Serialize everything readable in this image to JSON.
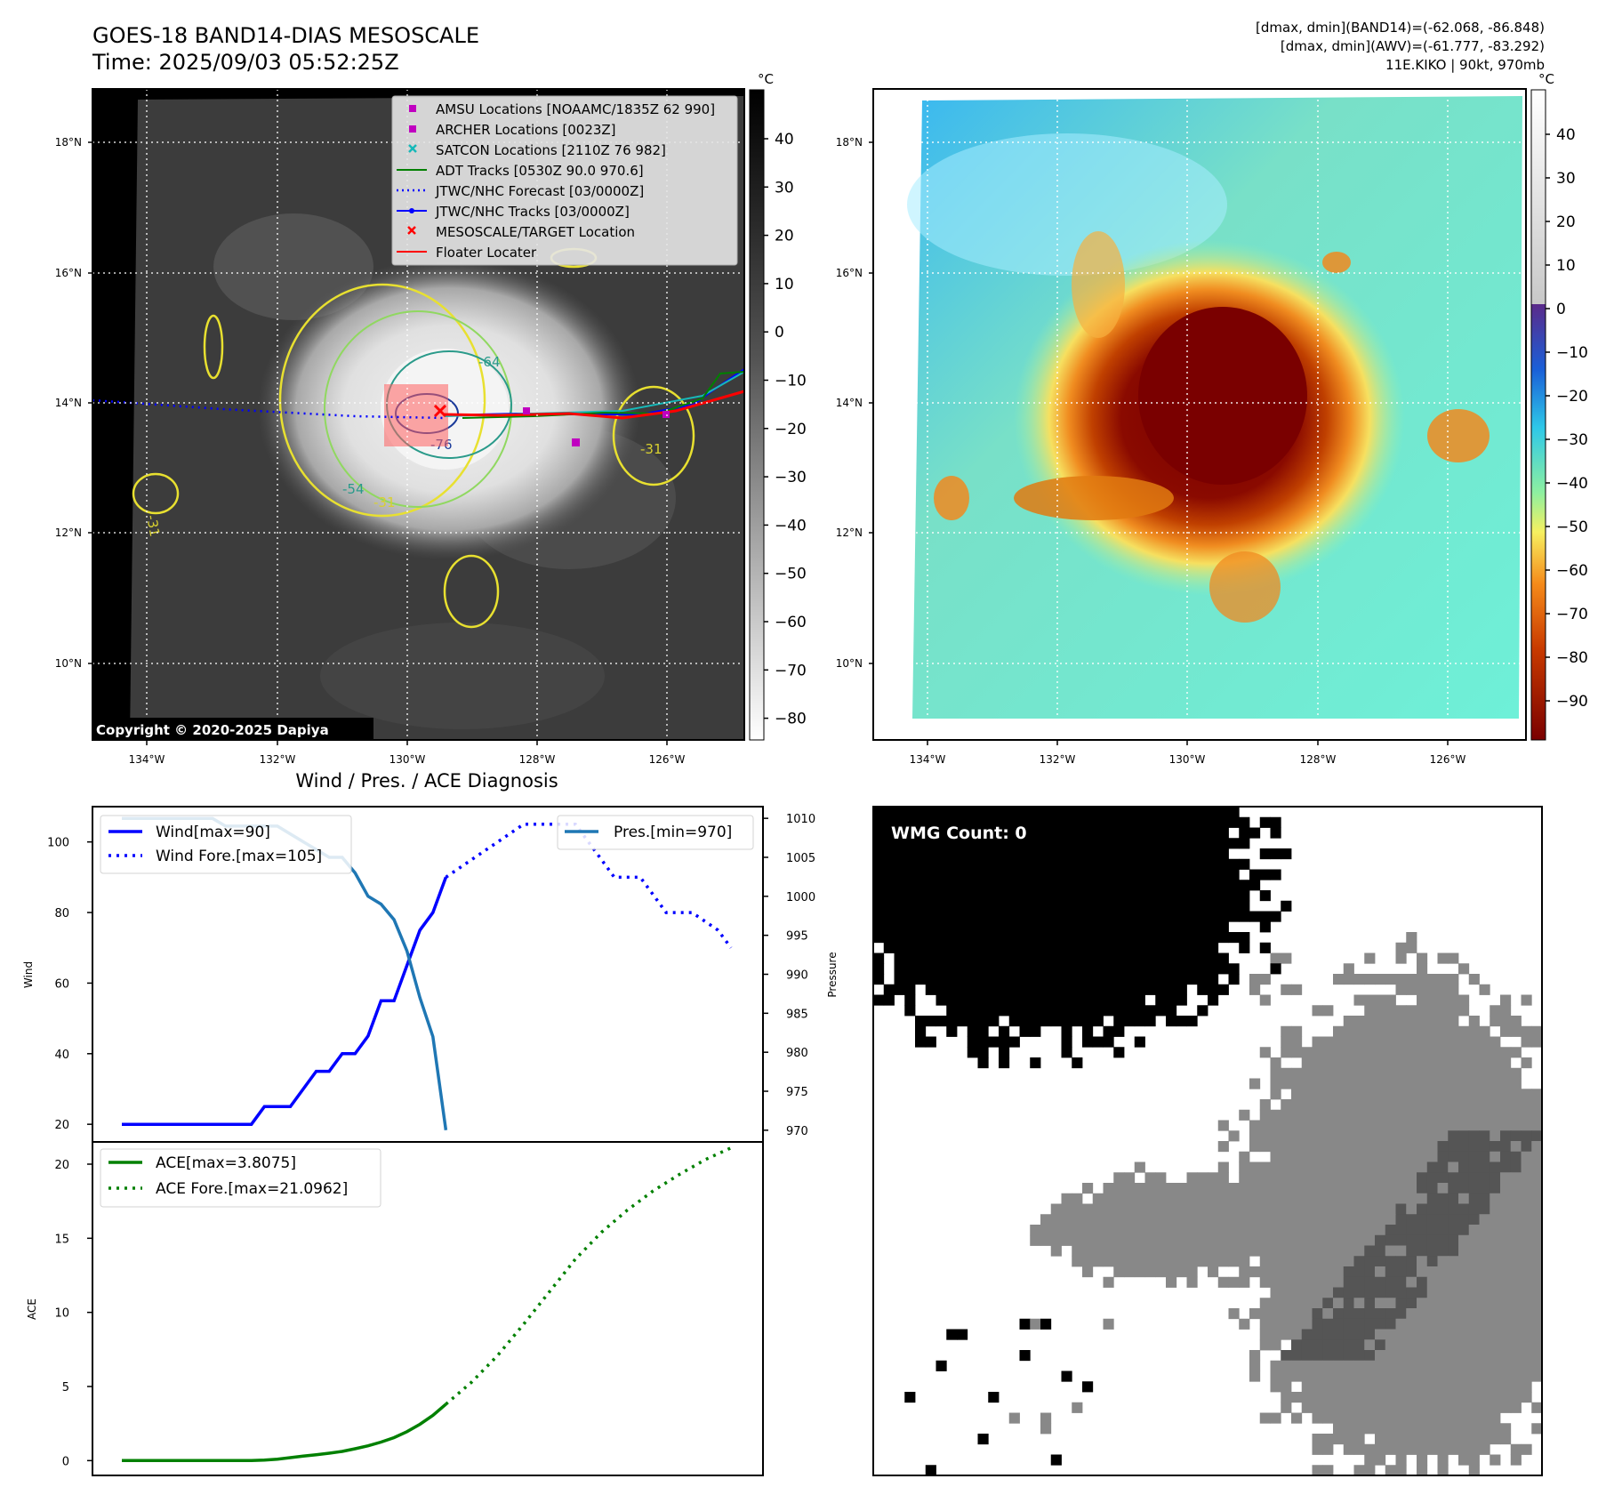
{
  "header": {
    "title_line1": "GOES-18 BAND14-DIAS MESOSCALE",
    "title_line2": "Time: 2025/09/03 05:52:25Z",
    "info_line1": "[dmax, dmin](BAND14)=(-62.068, -86.848)",
    "info_line2": "[dmax, dmin](AWV)=(-61.777, -83.292)",
    "info_line3": "11E.KIKO | 90kt, 970mb"
  },
  "maps": {
    "lat_ticks": [
      "18°N",
      "16°N",
      "14°N",
      "12°N",
      "10°N"
    ],
    "lon_ticks": [
      "134°W",
      "132°W",
      "130°W",
      "128°W",
      "126°W"
    ],
    "copyright": "Copyright © 2020-2025 Dapiya",
    "ir_colorbar": {
      "unit": "°C",
      "ticks": [
        "40",
        "30",
        "20",
        "10",
        "0",
        "−10",
        "−20",
        "−30",
        "−40",
        "−50",
        "−60",
        "−70",
        "−80"
      ]
    },
    "enh_colorbar": {
      "unit": "°C",
      "ticks": [
        "40",
        "30",
        "20",
        "10",
        "0",
        "−10",
        "−20",
        "−30",
        "−40",
        "−50",
        "−60",
        "−70",
        "−80",
        "−90"
      ]
    },
    "contour_labels": [
      "-31",
      "-54",
      "-64",
      "-76",
      "-31",
      "-31"
    ],
    "legend": [
      {
        "label": "AMSU Locations [NOAAMC/1835Z 62 990]",
        "color": "#c000c0",
        "marker": "square"
      },
      {
        "label": "ARCHER Locations [0023Z]",
        "color": "#c000c0",
        "marker": "square"
      },
      {
        "label": "SATCON Locations [2110Z 76 982]",
        "color": "#17b8b8",
        "marker": "x"
      },
      {
        "label": "ADT Tracks [0530Z 90.0 970.6]",
        "color": "#008000",
        "marker": "line"
      },
      {
        "label": "JTWC/NHC Forecast [03/0000Z]",
        "color": "#0000ff",
        "marker": "dotted"
      },
      {
        "label": "JTWC/NHC Tracks [03/0000Z]",
        "color": "#0000ff",
        "marker": "line-dot"
      },
      {
        "label": "MESOSCALE/TARGET Location",
        "color": "#ff0000",
        "marker": "x"
      },
      {
        "label": "Floater Locater",
        "color": "#ff0000",
        "marker": "line"
      }
    ]
  },
  "wmg": {
    "label": "WMG Count: 0"
  },
  "chart_data": [
    {
      "type": "line",
      "title": "Wind / Pres. / ACE Diagnosis",
      "ylabel": "Wind",
      "y2label": "Pressure",
      "ylim": [
        15,
        110
      ],
      "y2lim": [
        968.5,
        1011.5
      ],
      "yticks": [
        "20",
        "40",
        "60",
        "80",
        "100"
      ],
      "y2ticks": [
        "970",
        "975",
        "980",
        "985",
        "990",
        "995",
        "1000",
        "1005",
        "1010"
      ],
      "series": [
        {
          "name": "Wind[max=90]",
          "color": "#0000ff",
          "style": "solid",
          "x": [
            0,
            1,
            2,
            3,
            4,
            5,
            6,
            7,
            8,
            9,
            10,
            11,
            12,
            13,
            14,
            15,
            16,
            17,
            18,
            19,
            20,
            21,
            22,
            23,
            24,
            25
          ],
          "values": [
            20,
            20,
            20,
            20,
            20,
            20,
            20,
            20,
            20,
            20,
            20,
            25,
            25,
            25,
            30,
            35,
            35,
            40,
            40,
            45,
            55,
            55,
            65,
            75,
            80,
            90
          ]
        },
        {
          "name": "Wind Fore.[max=105]",
          "color": "#0000ff",
          "style": "dotted",
          "x": [
            25,
            27,
            29,
            31,
            33,
            35,
            36,
            37,
            38,
            40,
            41,
            42,
            44,
            46,
            47
          ],
          "values": [
            90,
            95,
            100,
            105,
            105,
            105,
            100,
            95,
            90,
            90,
            85,
            80,
            80,
            75,
            70
          ]
        },
        {
          "name": "Pres.[min=970]",
          "color": "#1f77b4",
          "style": "solid",
          "axis": "right",
          "x": [
            0,
            1,
            2,
            3,
            4,
            5,
            6,
            7,
            8,
            9,
            10,
            11,
            12,
            13,
            14,
            15,
            16,
            17,
            18,
            19,
            20,
            21,
            22,
            23,
            24,
            25
          ],
          "values": [
            1010,
            1010,
            1010,
            1010,
            1010,
            1010,
            1010,
            1010,
            1009,
            1009,
            1009,
            1009,
            1009,
            1008,
            1007,
            1006,
            1005,
            1005,
            1003,
            1000,
            999,
            997,
            993,
            987,
            982,
            970
          ]
        }
      ]
    },
    {
      "type": "line",
      "ylabel": "ACE",
      "ylim": [
        -1,
        21.5
      ],
      "yticks": [
        "0",
        "5",
        "10",
        "15",
        "20"
      ],
      "series": [
        {
          "name": "ACE[max=3.8075]",
          "color": "#008000",
          "style": "solid",
          "x": [
            0,
            2,
            4,
            6,
            8,
            10,
            11,
            12,
            13,
            14,
            15,
            16,
            17,
            18,
            19,
            20,
            21,
            22,
            23,
            24,
            25
          ],
          "values": [
            0,
            0,
            0,
            0,
            0,
            0,
            0.03,
            0.1,
            0.2,
            0.3,
            0.4,
            0.5,
            0.62,
            0.8,
            1.0,
            1.25,
            1.55,
            1.95,
            2.45,
            3.05,
            3.8075
          ]
        },
        {
          "name": "ACE Fore.[max=21.0962]",
          "color": "#008000",
          "style": "dotted",
          "x": [
            25,
            27,
            29,
            31,
            33,
            35,
            37,
            39,
            41,
            43,
            45,
            47
          ],
          "values": [
            3.8075,
            5.3,
            7.1,
            9.2,
            11.4,
            13.6,
            15.4,
            16.9,
            18.2,
            19.3,
            20.3,
            21.0962
          ]
        }
      ]
    }
  ]
}
